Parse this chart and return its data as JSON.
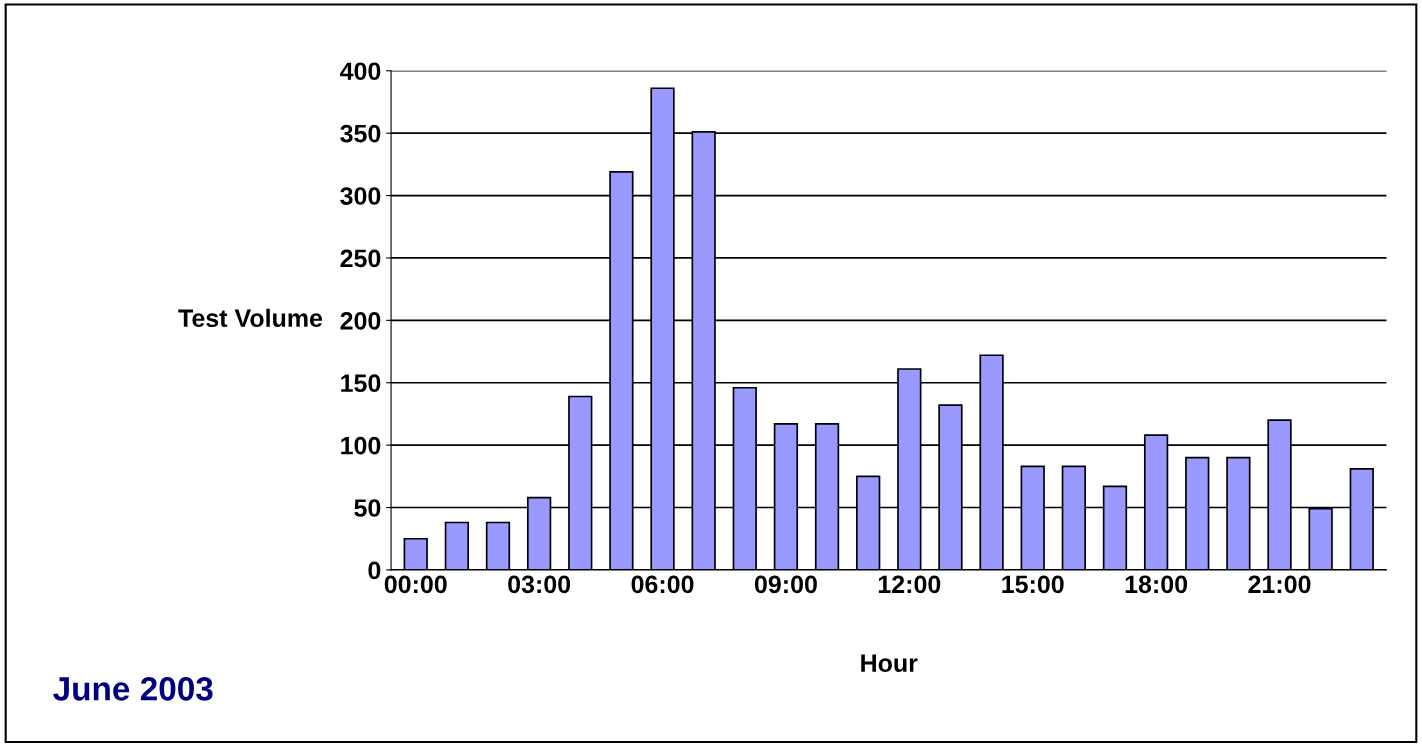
{
  "chart_data": {
    "type": "bar",
    "xlabel": "Hour",
    "ylabel": "Test Volume",
    "categories": [
      "00:00",
      null,
      null,
      "03:00",
      null,
      null,
      "06:00",
      null,
      null,
      "09:00",
      null,
      null,
      "12:00",
      null,
      null,
      "15:00",
      null,
      null,
      "18:00",
      null,
      null,
      "21:00",
      null,
      null
    ],
    "values": [
      25,
      38,
      38,
      58,
      139,
      319,
      386,
      351,
      146,
      117,
      117,
      75,
      161,
      132,
      172,
      83,
      83,
      67,
      108,
      90,
      90,
      120,
      49,
      81
    ],
    "color": "#9999ff",
    "ylim": [
      0,
      400
    ],
    "yticks": [
      0,
      50,
      100,
      150,
      200,
      250,
      300,
      350,
      400
    ],
    "grid": "y",
    "annotations": [
      "June 2003"
    ]
  }
}
